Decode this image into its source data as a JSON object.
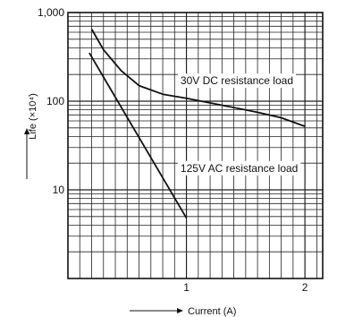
{
  "chart_data": {
    "type": "line",
    "title": "",
    "xlabel": "Current (A)",
    "ylabel": "Life (×10⁴)",
    "xlim": [
      0,
      2.15
    ],
    "ylim": [
      1,
      1000
    ],
    "yscale": "log",
    "grid": true,
    "x_ticks": [
      {
        "value": 1,
        "label": "1"
      },
      {
        "value": 2,
        "label": "2"
      }
    ],
    "y_ticks": [
      {
        "value": 1000,
        "label": "1,000"
      },
      {
        "value": 100,
        "label": "100"
      },
      {
        "value": 10,
        "label": "10"
      }
    ],
    "series": [
      {
        "label": "30V DC resistance load",
        "points": [
          [
            0.2,
            650
          ],
          [
            0.3,
            380
          ],
          [
            0.45,
            220
          ],
          [
            0.6,
            150
          ],
          [
            0.8,
            120
          ],
          [
            1.0,
            108
          ],
          [
            1.3,
            90
          ],
          [
            1.6,
            75
          ],
          [
            1.8,
            65
          ],
          [
            2.0,
            52
          ]
        ]
      },
      {
        "label": "125V AC resistance load",
        "points": [
          [
            0.18,
            350
          ],
          [
            1.0,
            4.8
          ]
        ]
      }
    ],
    "annotations": [
      {
        "text": "30V DC resistance load",
        "x": 0.95,
        "y": 155
      },
      {
        "text": "125V AC resistance load",
        "x": 0.95,
        "y": 16
      }
    ]
  }
}
